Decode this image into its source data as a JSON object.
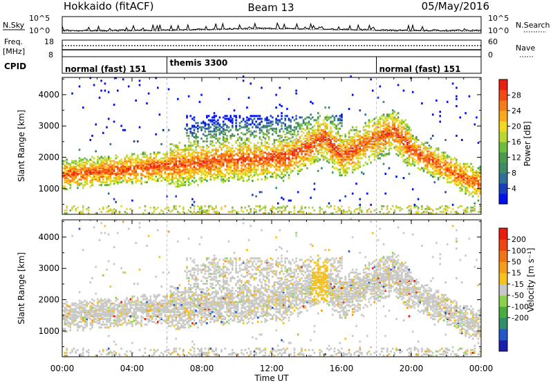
{
  "header": {
    "station": "Hokkaido (fitACF)",
    "beam": "Beam 13",
    "date": "05/May/2016"
  },
  "noise_panel": {
    "left_label": "N.Sky",
    "right_label": "N.Search",
    "left_ticks": [
      "10^5",
      "10^0"
    ],
    "right_ticks": [
      "10^5",
      "10^0"
    ]
  },
  "freq_panel": {
    "left_label_1": "Freq.",
    "left_label_2": "[MHz]",
    "right_label": "Nave",
    "left_ticks": [
      "18",
      "8"
    ],
    "right_ticks": [
      "60",
      "0"
    ]
  },
  "cpid_panel": {
    "label": "CPID",
    "segments": [
      {
        "start_hour": 0,
        "end_hour": 6,
        "text": "normal (fast) 151"
      },
      {
        "start_hour": 6,
        "end_hour": 18,
        "text": "themis 3300"
      },
      {
        "start_hour": 18,
        "end_hour": 24,
        "text": "normal (fast) 151"
      }
    ]
  },
  "chart_data": [
    {
      "type": "heatmap",
      "name": "power",
      "ylabel": "Slant Range [km]",
      "yticks": [
        "1000",
        "2000",
        "3000",
        "4000"
      ],
      "ylim": [
        180,
        4550
      ],
      "xlim": [
        0,
        24
      ],
      "colorbar": {
        "label": "Power [dB]",
        "range": [
          0,
          32
        ],
        "ticks": [
          "4",
          "8",
          "12",
          "16",
          "20",
          "24",
          "28"
        ],
        "colors": [
          "#0010f0",
          "#1b3ec0",
          "#2f6f9a",
          "#3b8c67",
          "#4a9a50",
          "#6fbd3c",
          "#b9d82f",
          "#f2d91d",
          "#f8aa18",
          "#f57c17",
          "#f14a12",
          "#ec1f0e"
        ]
      },
      "bands": [
        {
          "x": [
            0,
            1,
            2,
            3,
            4,
            5,
            6,
            7,
            8,
            9,
            10,
            11,
            12,
            13,
            14,
            15,
            16,
            17,
            18,
            19,
            20,
            21,
            22,
            23,
            24
          ],
          "y": [
            1400,
            1450,
            1500,
            1550,
            1600,
            1650,
            1700,
            1750,
            1800,
            1850,
            1900,
            1900,
            1950,
            2000,
            2300,
            2600,
            2000,
            2300,
            2600,
            2800,
            2200,
            1900,
            1600,
            1300,
            1100
          ],
          "label": ""
        }
      ]
    },
    {
      "type": "heatmap",
      "name": "velocity",
      "ylabel": "Slant Range [km]",
      "yticks": [
        "1000",
        "2000",
        "3000",
        "4000"
      ],
      "ylim": [
        180,
        4550
      ],
      "xlim": [
        0,
        24
      ],
      "xlabel": "Time UT",
      "xticks": [
        "00:00",
        "04:00",
        "08:00",
        "12:00",
        "16:00",
        "20:00",
        "00:00"
      ],
      "colorbar": {
        "label": "Velocity [m s⁻¹]",
        "range": [
          -250,
          250
        ],
        "ticks": [
          "200",
          "100",
          "50",
          "15",
          "-15",
          "-50",
          "-100",
          "-200"
        ],
        "colors": [
          "#1b1fb0",
          "#2457c8",
          "#2f8f6a",
          "#49ad3e",
          "#8bd24a",
          "#c8c8c4",
          "#f4c21a",
          "#f59e16",
          "#f47312",
          "#f0440e",
          "#ec1b0b"
        ]
      }
    }
  ]
}
